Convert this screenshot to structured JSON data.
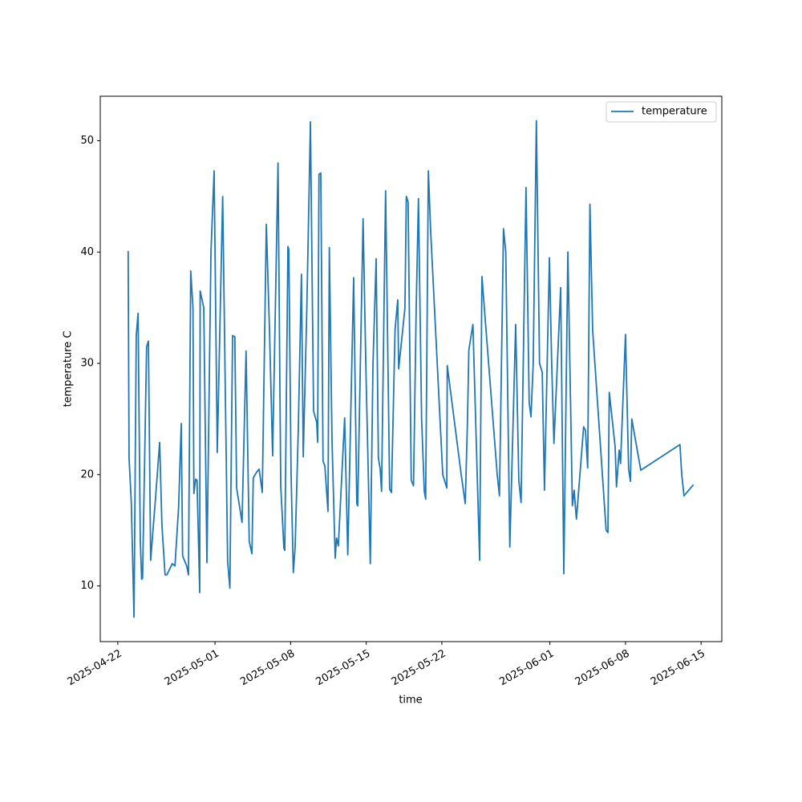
{
  "chart_data": {
    "type": "line",
    "x_label": "time",
    "y_label": "temperature C",
    "legend": "upper right",
    "xlim": [
      "2025-04-20T09:00",
      "2025-06-16T22:00"
    ],
    "xticks": [
      "2025-04-22",
      "2025-05-01",
      "2025-05-08",
      "2025-05-15",
      "2025-05-22",
      "2025-06-01",
      "2025-06-08",
      "2025-06-15"
    ],
    "ylim": [
      5.0,
      54.0
    ],
    "yticks": [
      10,
      20,
      30,
      40,
      50
    ],
    "x": [
      "2025-04-22T23:00",
      "2025-04-23T01:00",
      "2025-04-23T06:00",
      "2025-04-23T12:00",
      "2025-04-23T17:00",
      "2025-04-23T21:00",
      "2025-04-24T02:00",
      "2025-04-24T05:00",
      "2025-04-24T07:00",
      "2025-04-24T16:00",
      "2025-04-24T20:00",
      "2025-04-25T01:00",
      "2025-04-25T12:00",
      "2025-04-25T21:00",
      "2025-04-26T02:00",
      "2025-04-26T09:00",
      "2025-04-26T13:00",
      "2025-04-27T01:00",
      "2025-04-27T07:00",
      "2025-04-27T15:00",
      "2025-04-27T21:00",
      "2025-04-28T00:00",
      "2025-04-28T09:00",
      "2025-04-28T13:00",
      "2025-04-28T18:00",
      "2025-04-28T23:00",
      "2025-04-29T01:00",
      "2025-04-29T05:00",
      "2025-04-29T08:00",
      "2025-04-29T14:00",
      "2025-04-29T15:00",
      "2025-04-29T23:00",
      "2025-04-30T06:00",
      "2025-04-30T15:00",
      "2025-04-30T22:00",
      "2025-05-01T05:00",
      "2025-05-01T17:00",
      "2025-05-02T04:00",
      "2025-05-02T09:00",
      "2025-05-02T15:00",
      "2025-05-02T20:00",
      "2025-05-03T00:00",
      "2025-05-03T09:00",
      "2025-05-03T12:00",
      "2025-05-03T21:00",
      "2025-05-04T04:00",
      "2025-05-04T10:00",
      "2025-05-04T13:00",
      "2025-05-04T20:00",
      "2025-05-05T02:00",
      "2025-05-05T09:00",
      "2025-05-05T18:00",
      "2025-05-06T01:00",
      "2025-05-06T08:00",
      "2025-05-06T20:00",
      "2025-05-07T02:00",
      "2025-05-07T09:00",
      "2025-05-07T11:00",
      "2025-05-07T18:00",
      "2025-05-07T20:00",
      "2025-05-08T01:00",
      "2025-05-08T06:00",
      "2025-05-08T10:00",
      "2025-05-08T17:00",
      "2025-05-09T00:00",
      "2025-05-09T04:00",
      "2025-05-09T12:00",
      "2025-05-09T20:00",
      "2025-05-10T03:00",
      "2025-05-10T10:00",
      "2025-05-10T12:00",
      "2025-05-10T15:00",
      "2025-05-10T19:00",
      "2025-05-11T00:00",
      "2025-05-11T04:00",
      "2025-05-11T11:00",
      "2025-05-11T14:00",
      "2025-05-11T20:00",
      "2025-05-12T03:00",
      "2025-05-12T06:00",
      "2025-05-12T10:00",
      "2025-05-13T00:00",
      "2025-05-13T07:00",
      "2025-05-13T20:00",
      "2025-05-14T03:00",
      "2025-05-14T05:00",
      "2025-05-14T17:00",
      "2025-05-14T23:00",
      "2025-05-15T09:00",
      "2025-05-15T15:00",
      "2025-05-15T22:00",
      "2025-05-16T03:00",
      "2025-05-16T07:00",
      "2025-05-16T10:00",
      "2025-05-16T19:00",
      "2025-05-17T04:00",
      "2025-05-17T08:00",
      "2025-05-17T16:00",
      "2025-05-17T22:00",
      "2025-05-18T00:00",
      "2025-05-18T09:00",
      "2025-05-18T14:00",
      "2025-05-18T17:00",
      "2025-05-18T21:00",
      "2025-05-19T04:00",
      "2025-05-19T09:00",
      "2025-05-19T15:00",
      "2025-05-19T20:00",
      "2025-05-20T03:00",
      "2025-05-20T09:00",
      "2025-05-20T12:00",
      "2025-05-20T18:00",
      "2025-05-20T23:00",
      "2025-05-22T02:00",
      "2025-05-22T11:00",
      "2025-05-22T12:00",
      "2025-05-23T19:00",
      "2025-05-24T04:00",
      "2025-05-24T09:00",
      "2025-05-24T12:00",
      "2025-05-24T21:00",
      "2025-05-25T12:00",
      "2025-05-25T17:00",
      "2025-05-27T03:00",
      "2025-05-27T08:00",
      "2025-05-27T17:00",
      "2025-05-27T22:00",
      "2025-05-28T07:00",
      "2025-05-28T20:00",
      "2025-05-29T03:00",
      "2025-05-29T08:00",
      "2025-05-29T19:00",
      "2025-05-30T02:00",
      "2025-05-30T06:00",
      "2025-05-30T11:00",
      "2025-05-30T18:00",
      "2025-05-31T01:00",
      "2025-05-31T07:00",
      "2025-05-31T12:00",
      "2025-05-31T23:00",
      "2025-06-01T04:00",
      "2025-06-01T09:00",
      "2025-06-02T00:00",
      "2025-06-02T07:00",
      "2025-06-02T16:00",
      "2025-06-03T02:00",
      "2025-06-03T06:00",
      "2025-06-03T08:00",
      "2025-06-03T11:00",
      "2025-06-04T03:00",
      "2025-06-04T07:00",
      "2025-06-04T12:00",
      "2025-06-04T17:00",
      "2025-06-04T23:00",
      "2025-06-06T05:00",
      "2025-06-06T09:00",
      "2025-06-06T12:00",
      "2025-06-07T01:00",
      "2025-06-07T04:00",
      "2025-06-07T10:00",
      "2025-06-07T13:00",
      "2025-06-08T00:00",
      "2025-06-08T07:00",
      "2025-06-08T11:00",
      "2025-06-08T14:00",
      "2025-06-09T10:00",
      "2025-06-13T01:00",
      "2025-06-13T05:00",
      "2025-06-13T10:00",
      "2025-06-14T07:00"
    ],
    "series": [
      {
        "name": "temperature",
        "color": "#1f77b4",
        "values": [
          40.1,
          21.5,
          17.5,
          7.2,
          32.5,
          34.5,
          14,
          10.6,
          10.7,
          31.5,
          32,
          12.3,
          18,
          22.9,
          15.5,
          11,
          11,
          12,
          11.8,
          17,
          24.6,
          12.7,
          11.8,
          11,
          38.3,
          35,
          18.3,
          19.6,
          19.5,
          9.4,
          36.5,
          35,
          12.1,
          40,
          47.3,
          22,
          45,
          12.2,
          9.8,
          32.5,
          32.4,
          18.8,
          16.5,
          15.7,
          31.1,
          14,
          12.9,
          19.7,
          20.2,
          20.5,
          18.4,
          42.5,
          33,
          21.7,
          48,
          19,
          13.4,
          13.2,
          40.5,
          40.2,
          20,
          11.2,
          13.5,
          24,
          38,
          21.6,
          35,
          51.7,
          25.7,
          24.7,
          22.9,
          47,
          47.1,
          21.2,
          20.8,
          16.7,
          40.4,
          23,
          12.5,
          14.3,
          13.6,
          25.1,
          12.8,
          37.7,
          17.4,
          17.2,
          43,
          30,
          12.0,
          30,
          39.4,
          21.5,
          20.5,
          18.5,
          45.5,
          18.7,
          18.4,
          33,
          35.7,
          29.5,
          33,
          35,
          45,
          44.5,
          19.5,
          19,
          35,
          44.8,
          25,
          18.5,
          17.8,
          47.3,
          42,
          20,
          18.8,
          29.8,
          20,
          17.4,
          25,
          31.2,
          33.5,
          12.3,
          37.8,
          20,
          18.1,
          42.1,
          40,
          13.5,
          33.5,
          19.5,
          17.5,
          45.8,
          26.5,
          25.2,
          30,
          51.8,
          30,
          29.2,
          18.6,
          39.5,
          30,
          22.8,
          36.8,
          11.1,
          40,
          17.2,
          18.6,
          17.5,
          16,
          24.3,
          24,
          20.6,
          44.3,
          33,
          15,
          14.8,
          27.4,
          22.5,
          18.9,
          22.2,
          21,
          32.6,
          20.5,
          19.4,
          25,
          20.4,
          22.7,
          20,
          18.1,
          19.1
        ]
      }
    ]
  }
}
